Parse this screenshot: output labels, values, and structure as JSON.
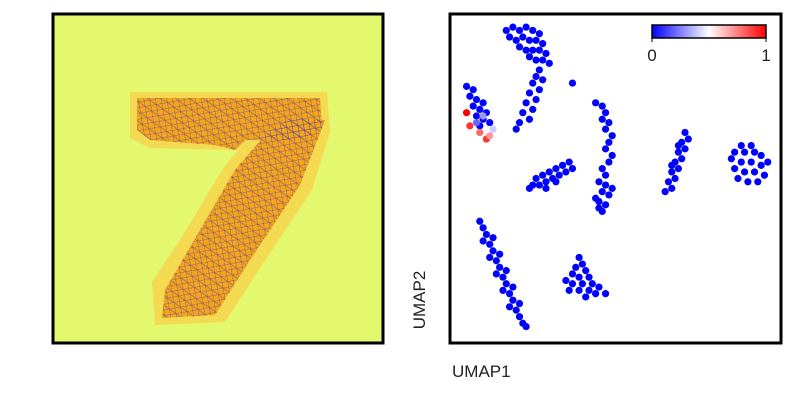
{
  "chart_data": {
    "type": "scatter",
    "xlabel": "UMAP1",
    "ylabel": "UMAP2",
    "xlim": [
      0,
      100
    ],
    "ylim": [
      0,
      100
    ],
    "colormap": [
      "#0000ff",
      "#ffffff",
      "#ff0000"
    ],
    "colorbar": {
      "range": [
        0,
        1
      ],
      "ticks": [
        0,
        1
      ]
    },
    "points": [
      [
        17,
        95,
        0
      ],
      [
        19,
        96,
        0
      ],
      [
        21,
        95,
        0
      ],
      [
        23,
        96,
        0
      ],
      [
        25,
        95,
        0
      ],
      [
        27,
        94,
        0
      ],
      [
        18,
        93,
        0
      ],
      [
        20,
        92,
        0
      ],
      [
        22,
        93,
        0
      ],
      [
        24,
        92,
        0
      ],
      [
        26,
        92,
        0
      ],
      [
        28,
        91,
        0
      ],
      [
        21,
        90,
        0
      ],
      [
        23,
        89,
        0
      ],
      [
        25,
        89,
        0
      ],
      [
        27,
        89,
        0
      ],
      [
        29,
        88,
        0
      ],
      [
        24,
        87,
        0
      ],
      [
        26,
        86,
        0
      ],
      [
        28,
        86,
        0
      ],
      [
        30,
        85,
        0
      ],
      [
        27,
        83,
        0
      ],
      [
        26,
        81,
        0
      ],
      [
        28,
        80,
        0
      ],
      [
        25,
        79,
        0
      ],
      [
        27,
        77,
        0
      ],
      [
        24,
        76,
        0
      ],
      [
        26,
        74,
        0
      ],
      [
        23,
        73,
        0
      ],
      [
        25,
        71,
        0
      ],
      [
        22,
        70,
        0
      ],
      [
        24,
        68,
        0
      ],
      [
        21,
        67,
        0
      ],
      [
        20,
        65,
        0
      ],
      [
        37,
        79,
        0
      ],
      [
        5,
        78,
        0
      ],
      [
        7,
        77,
        0
      ],
      [
        6,
        75,
        0
      ],
      [
        8,
        74,
        0
      ],
      [
        10,
        73,
        0
      ],
      [
        7,
        72,
        0
      ],
      [
        9,
        71,
        0
      ],
      [
        11,
        70,
        0
      ],
      [
        8,
        69,
        0
      ],
      [
        10,
        68,
        0
      ],
      [
        12,
        67,
        0
      ],
      [
        9,
        66,
        0
      ],
      [
        5,
        70,
        1
      ],
      [
        6,
        66,
        0.9
      ],
      [
        9,
        64,
        0.8
      ],
      [
        11,
        62,
        0.9
      ],
      [
        12,
        63,
        0.7
      ],
      [
        13,
        65,
        0.4
      ],
      [
        10,
        69,
        0.3
      ],
      [
        8,
        67,
        0.2
      ],
      [
        44,
        73,
        0
      ],
      [
        46,
        72,
        0
      ],
      [
        47,
        70,
        0
      ],
      [
        46,
        68,
        0
      ],
      [
        48,
        67,
        0
      ],
      [
        47,
        65,
        0
      ],
      [
        49,
        63,
        0
      ],
      [
        48,
        61,
        0
      ],
      [
        47,
        59,
        0
      ],
      [
        49,
        57,
        0
      ],
      [
        48,
        55,
        0
      ],
      [
        46,
        53,
        0
      ],
      [
        47,
        51,
        0
      ],
      [
        45,
        49,
        0
      ],
      [
        47,
        48,
        0
      ],
      [
        46,
        46,
        0
      ],
      [
        48,
        45,
        0
      ],
      [
        45,
        43,
        0
      ],
      [
        47,
        42,
        0
      ],
      [
        46,
        40,
        0
      ],
      [
        44,
        44,
        0
      ],
      [
        49,
        47,
        0
      ],
      [
        45,
        41,
        0
      ],
      [
        25,
        48,
        0
      ],
      [
        27,
        48,
        0
      ],
      [
        29,
        49,
        0
      ],
      [
        31,
        50,
        0
      ],
      [
        33,
        51,
        0
      ],
      [
        35,
        52,
        0
      ],
      [
        37,
        53,
        0
      ],
      [
        26,
        50,
        0
      ],
      [
        28,
        51,
        0
      ],
      [
        30,
        52,
        0
      ],
      [
        32,
        53,
        0
      ],
      [
        34,
        54,
        0
      ],
      [
        36,
        55,
        0
      ],
      [
        24,
        47,
        0
      ],
      [
        29,
        47,
        0
      ],
      [
        32,
        49,
        0
      ],
      [
        71,
        64,
        0
      ],
      [
        72,
        62,
        0
      ],
      [
        70,
        61,
        0
      ],
      [
        71,
        59,
        0
      ],
      [
        69,
        58,
        0
      ],
      [
        70,
        56,
        0
      ],
      [
        68,
        55,
        0
      ],
      [
        69,
        53,
        0
      ],
      [
        67,
        52,
        0
      ],
      [
        68,
        50,
        0
      ],
      [
        66,
        49,
        0
      ],
      [
        67,
        47,
        0
      ],
      [
        65,
        46,
        0
      ],
      [
        69,
        60,
        0
      ],
      [
        67,
        54,
        0
      ],
      [
        88,
        60,
        0
      ],
      [
        91,
        60,
        0
      ],
      [
        86,
        58,
        0
      ],
      [
        89,
        58,
        0
      ],
      [
        92,
        58,
        0
      ],
      [
        94,
        57,
        0
      ],
      [
        85,
        56,
        0
      ],
      [
        88,
        55,
        0
      ],
      [
        91,
        55,
        0
      ],
      [
        94,
        54,
        0
      ],
      [
        96,
        55,
        0
      ],
      [
        86,
        53,
        0
      ],
      [
        89,
        52,
        0
      ],
      [
        92,
        52,
        0
      ],
      [
        95,
        51,
        0
      ],
      [
        87,
        50,
        0
      ],
      [
        90,
        49,
        0
      ],
      [
        93,
        49,
        0
      ],
      [
        9,
        37,
        0
      ],
      [
        10,
        35,
        0
      ],
      [
        11,
        33,
        0
      ],
      [
        10,
        31,
        0
      ],
      [
        12,
        30,
        0
      ],
      [
        13,
        28,
        0
      ],
      [
        12,
        26,
        0
      ],
      [
        14,
        25,
        0
      ],
      [
        15,
        23,
        0
      ],
      [
        14,
        21,
        0
      ],
      [
        16,
        20,
        0
      ],
      [
        17,
        18,
        0
      ],
      [
        16,
        16,
        0
      ],
      [
        18,
        15,
        0
      ],
      [
        19,
        13,
        0
      ],
      [
        18,
        11,
        0
      ],
      [
        20,
        10,
        0
      ],
      [
        21,
        8,
        0
      ],
      [
        22,
        6,
        0
      ],
      [
        23,
        5,
        0
      ],
      [
        13,
        32,
        0
      ],
      [
        15,
        27,
        0
      ],
      [
        17,
        22,
        0
      ],
      [
        19,
        17,
        0
      ],
      [
        21,
        12,
        0
      ],
      [
        39,
        26,
        0
      ],
      [
        40,
        24,
        0
      ],
      [
        38,
        23,
        0
      ],
      [
        41,
        22,
        0
      ],
      [
        37,
        21,
        0
      ],
      [
        39,
        20,
        0
      ],
      [
        42,
        20,
        0
      ],
      [
        35,
        19,
        0
      ],
      [
        37,
        18,
        0
      ],
      [
        40,
        18,
        0
      ],
      [
        43,
        18,
        0
      ],
      [
        45,
        17,
        0
      ],
      [
        36,
        16,
        0
      ],
      [
        39,
        16,
        0
      ],
      [
        42,
        16,
        0
      ],
      [
        44,
        15,
        0
      ],
      [
        47,
        15,
        0
      ],
      [
        41,
        14,
        0
      ]
    ]
  }
}
